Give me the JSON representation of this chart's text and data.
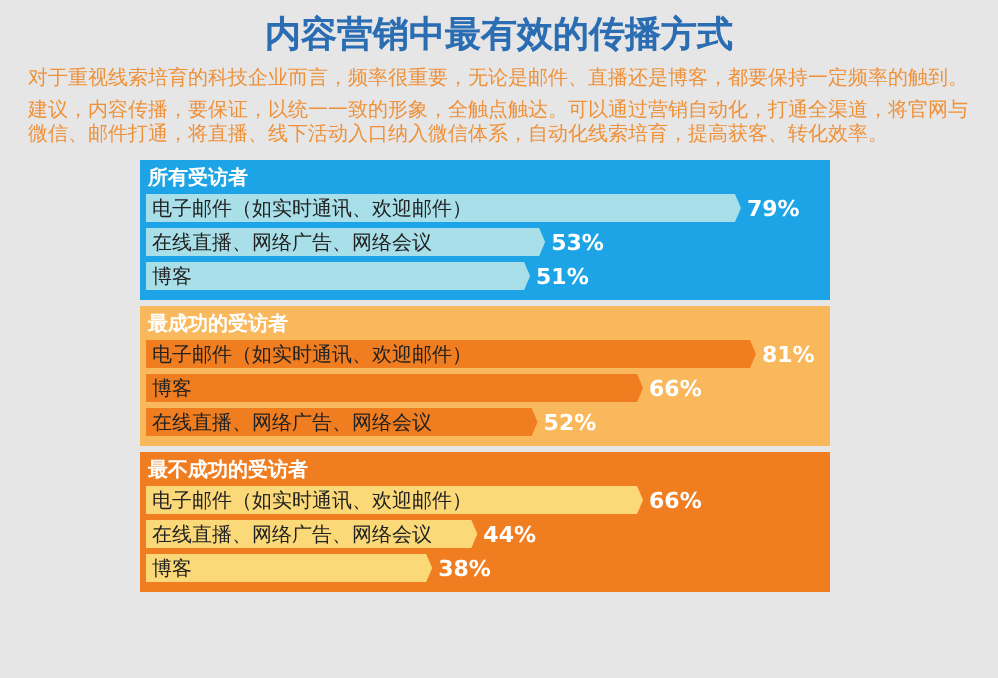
{
  "chart_data": [
    {
      "type": "other",
      "title": "内容营销中最有效的传播方式",
      "annotations": [
        "对于重视线索培育的科技企业而言，频率很重要，无论是邮件、直播还是博客，都要保持一定频率的触到。",
        "建议，内容传播，要保证，以统一一致的形象，全触点触达。可以通过营销自动化，打通全渠道，将官网与微信、邮件打通，将直播、线下活动入口纳入微信体系，自动化线索培育，提高获客、转化效率。"
      ]
    },
    {
      "type": "bar",
      "orientation": "horizontal",
      "title": "所有受访者",
      "categories": [
        "电子邮件（如实时通讯、欢迎邮件）",
        "在线直播、网络广告、网络会议",
        "博客"
      ],
      "series": [
        {
          "color": "#a9dfe9",
          "values": [
            79,
            53,
            51
          ],
          "value_labels": [
            "79%",
            "53%",
            "51%"
          ]
        }
      ]
    },
    {
      "type": "bar",
      "orientation": "horizontal",
      "title": "最成功的受访者",
      "categories": [
        "电子邮件（如实时通讯、欢迎邮件）",
        "博客",
        "在线直播、网络广告、网络会议"
      ],
      "series": [
        {
          "color": "#f07d1f",
          "values": [
            81,
            66,
            52
          ],
          "value_labels": [
            "81%",
            "66%",
            "52%"
          ]
        }
      ]
    },
    {
      "type": "bar",
      "orientation": "horizontal",
      "title": "最不成功的受访者",
      "categories": [
        "电子邮件（如实时通讯、欢迎邮件）",
        "在线直播、网络广告、网络会议",
        "博客"
      ],
      "series": [
        {
          "color": "#fbd978",
          "values": [
            66,
            44,
            38
          ],
          "value_labels": [
            "66%",
            "44%",
            "38%"
          ]
        }
      ]
    }
  ]
}
